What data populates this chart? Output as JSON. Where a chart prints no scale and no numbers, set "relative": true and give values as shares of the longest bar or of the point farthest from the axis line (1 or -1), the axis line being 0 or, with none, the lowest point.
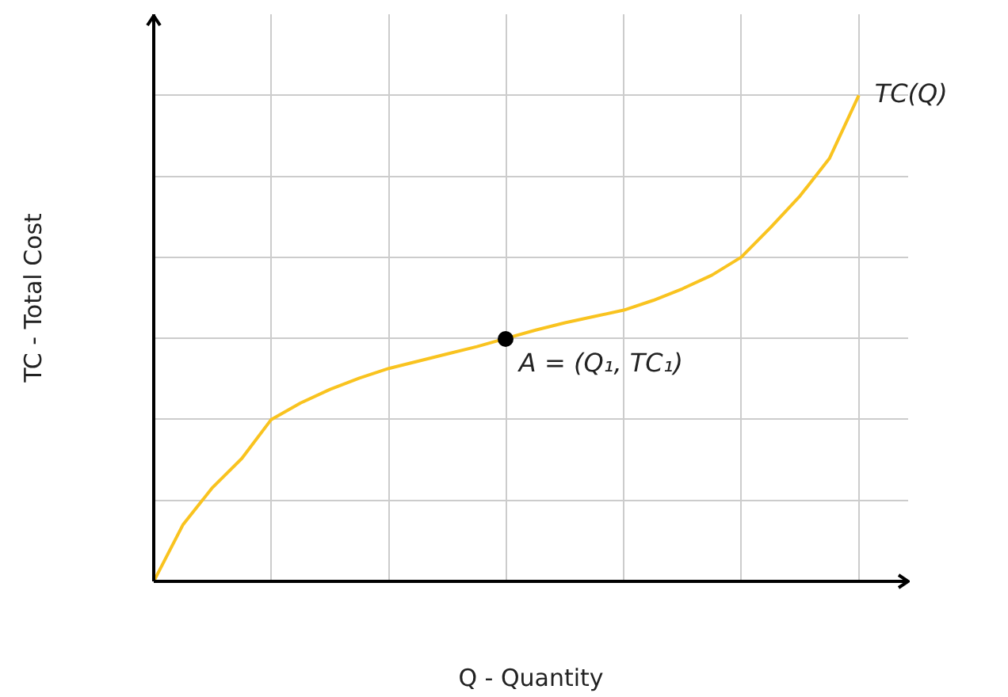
{
  "chart_data": {
    "type": "line",
    "relative": true,
    "xlabel": "Q - Quantity",
    "ylabel": "TC - Total Cost",
    "grid": true,
    "legend": false,
    "marker": "none",
    "categories": [
      null,
      null,
      null,
      null,
      null,
      null,
      null,
      null,
      null,
      null,
      null,
      null,
      null,
      null,
      null,
      null,
      null,
      null,
      null,
      null,
      null,
      null,
      null,
      null,
      null
    ],
    "series": [
      {
        "name": "TC(Q)",
        "color": "#f9c31f",
        "values": [
          0,
          0.117,
          0.193,
          0.253,
          0.333,
          0.367,
          0.395,
          0.418,
          0.438,
          0.453,
          0.468,
          0.483,
          0.5,
          0.517,
          0.532,
          0.545,
          0.558,
          0.578,
          0.602,
          0.63,
          0.667,
          0.728,
          0.793,
          0.87,
          1
        ]
      }
    ],
    "annotations": [
      "A = (Q₁, TC₁)"
    ]
  }
}
